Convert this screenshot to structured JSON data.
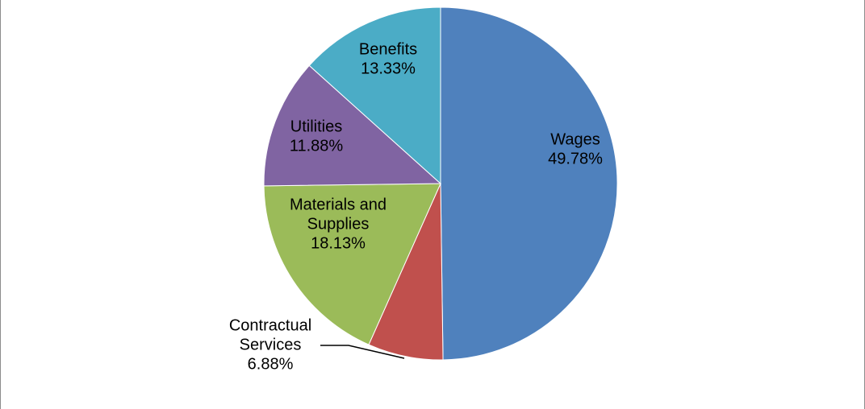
{
  "chart_data": {
    "type": "pie",
    "categories": [
      "Wages",
      "Contractual Services",
      "Materials and Supplies",
      "Utilities",
      "Benefits"
    ],
    "values": [
      49.78,
      6.88,
      18.13,
      11.88,
      13.33
    ],
    "slice_labels": [
      [
        "Wages",
        "49.78%"
      ],
      [
        "Contractual",
        "Services",
        "6.88%"
      ],
      [
        "Materials and",
        "Supplies",
        "18.13%"
      ],
      [
        "Utilities",
        "11.88%"
      ],
      [
        "Benefits",
        "13.33%"
      ]
    ],
    "colors": [
      "#4f81bd",
      "#c0504d",
      "#9bbb59",
      "#8064a2",
      "#4bacc6"
    ],
    "start_angle": "12 o'clock",
    "direction": "clockwise",
    "legend": "none",
    "title": ""
  }
}
